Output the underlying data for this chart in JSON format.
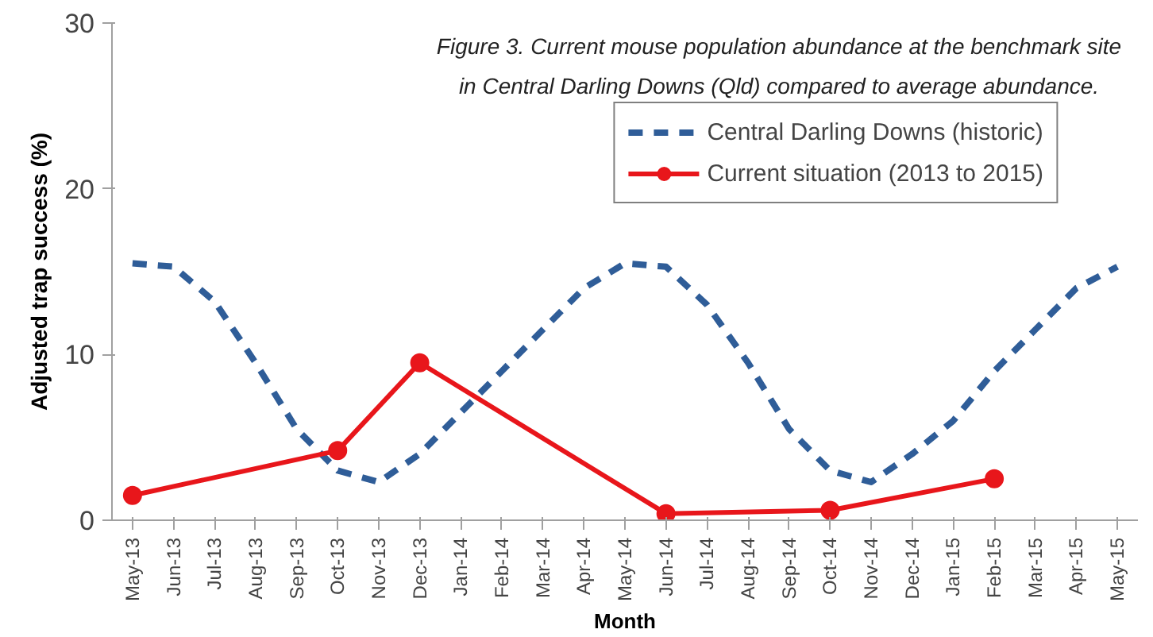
{
  "chart_data": {
    "type": "line",
    "title": "Figure 3. Current mouse population abundance at the benchmark site in Central Darling Downs (Qld) compared to average abundance.",
    "xlabel": "Month",
    "ylabel": "Adjusted trap success (%)",
    "categories": [
      "May-13",
      "Jun-13",
      "Jul-13",
      "Aug-13",
      "Sep-13",
      "Oct-13",
      "Nov-13",
      "Dec-13",
      "Jan-14",
      "Feb-14",
      "Mar-14",
      "Apr-14",
      "May-14",
      "Jun-14",
      "Jul-14",
      "Aug-14",
      "Sep-14",
      "Oct-14",
      "Nov-14",
      "Dec-14",
      "Jan-15",
      "Feb-15",
      "Mar-15",
      "Apr-15",
      "May-15"
    ],
    "series": [
      {
        "name": "Central Darling Downs (historic)",
        "color": "#2f5d98",
        "line_style": "dashed",
        "marker": "none",
        "values": [
          15.5,
          15.3,
          13.2,
          9.5,
          5.5,
          3.0,
          2.3,
          4.0,
          6.5,
          9.0,
          11.5,
          14.0,
          15.5,
          15.3,
          13.0,
          9.5,
          5.5,
          3.0,
          2.3,
          4.0,
          6.0,
          9.0,
          11.5,
          14.0,
          15.3
        ]
      },
      {
        "name": "Current situation (2013 to 2015)",
        "color": "#e8161b",
        "line_style": "solid",
        "marker": "circle",
        "values": [
          1.5,
          null,
          null,
          null,
          null,
          4.2,
          null,
          9.5,
          null,
          null,
          null,
          null,
          null,
          0.4,
          null,
          null,
          null,
          0.6,
          null,
          null,
          null,
          2.5,
          null,
          null,
          null
        ]
      }
    ],
    "ylim": [
      0,
      30
    ],
    "yticks": [
      0,
      10,
      20,
      30
    ],
    "grid": false,
    "legend": "top right"
  }
}
